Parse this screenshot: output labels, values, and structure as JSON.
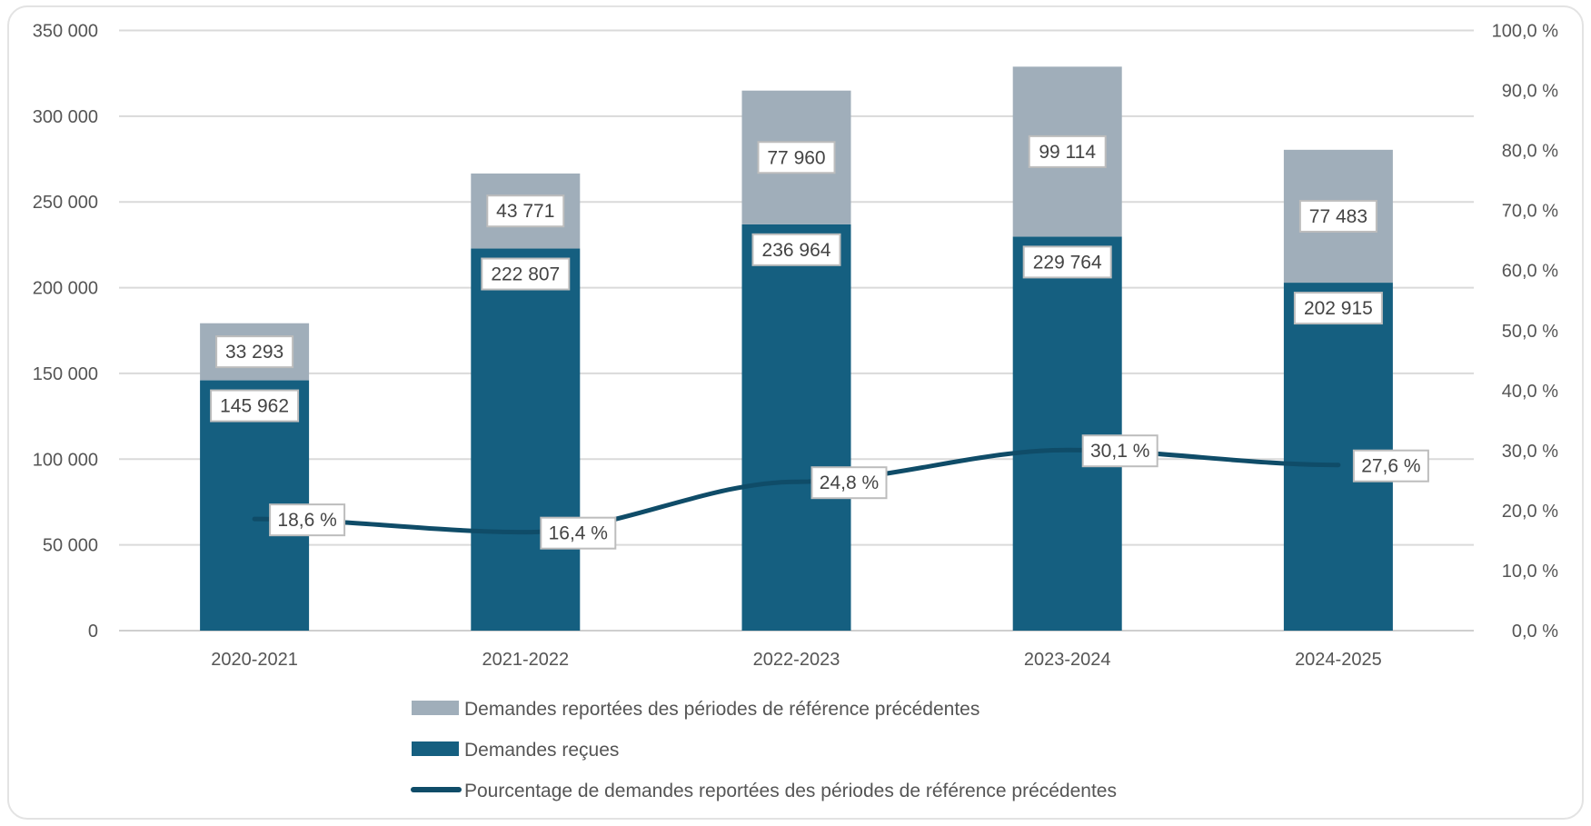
{
  "chart_data": {
    "type": "bar",
    "stacked": true,
    "categories": [
      "2020-2021",
      "2021-2022",
      "2022-2023",
      "2023-2024",
      "2024-2025"
    ],
    "series": [
      {
        "name": "Demandes reçues",
        "type": "bar",
        "axis": "left",
        "color": "#155f80",
        "values": [
          145962,
          222807,
          236964,
          229764,
          202915
        ],
        "labels": [
          "145 962",
          "222 807",
          "236 964",
          "229 764",
          "202 915"
        ]
      },
      {
        "name": "Demandes reportées des périodes de référence précédentes",
        "type": "bar",
        "axis": "left",
        "color": "#a0aeba",
        "values": [
          33293,
          43771,
          77960,
          99114,
          77483
        ],
        "labels": [
          "33 293",
          "43 771",
          "77 960",
          "99 114",
          "77 483"
        ]
      },
      {
        "name": "Pourcentage de demandes reportées des périodes de référence précédentes",
        "type": "line",
        "axis": "right",
        "color": "#0f4c68",
        "values": [
          18.6,
          16.4,
          24.8,
          30.1,
          27.6
        ],
        "labels": [
          "18,6 %",
          "16,4 %",
          "24,8 %",
          "30,1 %",
          "27,6 %"
        ]
      }
    ],
    "y_left": {
      "range": [
        0,
        350000
      ],
      "ticks": [
        0,
        50000,
        100000,
        150000,
        200000,
        250000,
        300000,
        350000
      ],
      "tick_labels": [
        "0",
        "50 000",
        "100 000",
        "150 000",
        "200 000",
        "250 000",
        "300 000",
        "350 000"
      ]
    },
    "y_right": {
      "range": [
        0,
        100
      ],
      "ticks": [
        0,
        10,
        20,
        30,
        40,
        50,
        60,
        70,
        80,
        90,
        100
      ],
      "tick_labels": [
        "0,0 %",
        "10,0 %",
        "20,0 %",
        "30,0 %",
        "40,0 %",
        "50,0 %",
        "60,0 %",
        "70,0 %",
        "80,0 %",
        "90,0 %",
        "100,0 %"
      ]
    },
    "grid": true,
    "legend_position": "bottom",
    "legend_order": [
      1,
      0,
      2
    ]
  }
}
